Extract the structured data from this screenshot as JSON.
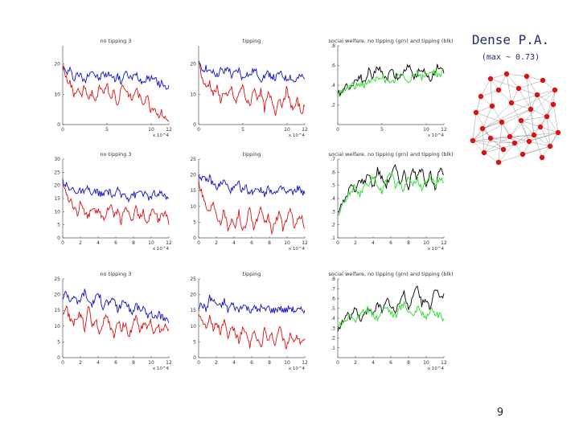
{
  "slide": {
    "title": "Dense P.A.",
    "subtitle": "(max ~ 0.73)",
    "page_number": "9"
  },
  "colors": {
    "red": "#e01010",
    "blue": "#1010c8",
    "black": "#000000",
    "green": "#22dd22",
    "node": "#e01010",
    "edge": "#999999"
  },
  "chart_data": [
    {
      "type": "line",
      "title": "no tipping 3",
      "xlim": [
        0,
        12
      ],
      "ylim": [
        0,
        26
      ],
      "yticks": [
        0,
        10,
        20
      ],
      "xticks": [
        0,
        5,
        10,
        12
      ],
      "xscale_label": "x 10^4",
      "series": [
        {
          "color": "blue",
          "values": [
            19,
            17,
            18,
            15,
            17,
            16,
            14,
            17,
            18,
            16,
            15,
            17,
            16,
            17,
            15,
            16,
            14,
            17,
            16,
            15,
            17,
            15,
            14,
            16,
            15,
            16,
            13,
            14,
            12,
            13
          ]
        },
        {
          "color": "red",
          "values": [
            20,
            15,
            14,
            10,
            12,
            9,
            13,
            8,
            11,
            7,
            12,
            10,
            14,
            9,
            11,
            6,
            13,
            12,
            10,
            8,
            12,
            9,
            7,
            10,
            5,
            6,
            3,
            4,
            2,
            1
          ]
        }
      ]
    },
    {
      "type": "line",
      "title": "tipping",
      "xlim": [
        0,
        12
      ],
      "ylim": [
        0,
        26
      ],
      "yticks": [
        0,
        10,
        20
      ],
      "xticks": [
        0,
        5,
        10,
        12
      ],
      "xscale_label": "x 10^4",
      "series": [
        {
          "color": "blue",
          "values": [
            20,
            18,
            19,
            17,
            18,
            16,
            18,
            17,
            19,
            16,
            17,
            18,
            15,
            17,
            16,
            18,
            17,
            15,
            16,
            17,
            16,
            15,
            17,
            16,
            15,
            16,
            14,
            15,
            16,
            15
          ]
        },
        {
          "color": "red",
          "values": [
            21,
            15,
            12,
            14,
            10,
            12,
            8,
            11,
            9,
            12,
            7,
            10,
            13,
            8,
            6,
            12,
            9,
            11,
            5,
            10,
            8,
            4,
            9,
            6,
            12,
            7,
            5,
            8,
            4,
            6
          ]
        }
      ]
    },
    {
      "type": "line",
      "title": "social welfare, no tipping (grn) and tipping (blk)",
      "xlim": [
        0,
        12
      ],
      "ylim": [
        0,
        0.8
      ],
      "yticks": [
        0.2,
        0.4,
        0.6,
        0.8
      ],
      "xticks": [
        0,
        5,
        10,
        12
      ],
      "xscale_label": "x 10^4",
      "series": [
        {
          "color": "black",
          "values": [
            0.3,
            0.35,
            0.4,
            0.38,
            0.45,
            0.5,
            0.42,
            0.55,
            0.48,
            0.6,
            0.52,
            0.45,
            0.58,
            0.5,
            0.46,
            0.55,
            0.6,
            0.48,
            0.52,
            0.58,
            0.5,
            0.45,
            0.56,
            0.6,
            0.52
          ]
        },
        {
          "color": "green",
          "values": [
            0.3,
            0.32,
            0.36,
            0.4,
            0.38,
            0.42,
            0.4,
            0.45,
            0.43,
            0.47,
            0.5,
            0.44,
            0.4,
            0.46,
            0.5,
            0.48,
            0.45,
            0.5,
            0.52,
            0.47,
            0.5,
            0.55,
            0.53,
            0.5,
            0.55
          ]
        }
      ]
    },
    {
      "type": "line",
      "title": "no tipping 3",
      "xlim": [
        0,
        12
      ],
      "ylim": [
        0,
        30
      ],
      "yticks": [
        0,
        5,
        10,
        15,
        20,
        25,
        30
      ],
      "xticks": [
        0,
        2,
        4,
        6,
        8,
        10,
        12
      ],
      "xscale_label": "x 10^4",
      "series": [
        {
          "color": "blue",
          "values": [
            22,
            20,
            18,
            19,
            17,
            18,
            17,
            19,
            16,
            18,
            17,
            16,
            18,
            17,
            16,
            18,
            16,
            17,
            15,
            17,
            16,
            18,
            17,
            16,
            15,
            17,
            16,
            17,
            16,
            15
          ]
        },
        {
          "color": "red",
          "values": [
            19,
            17,
            14,
            12,
            9,
            14,
            10,
            8,
            12,
            9,
            11,
            7,
            10,
            13,
            8,
            10,
            6,
            12,
            9,
            7,
            11,
            8,
            10,
            6,
            9,
            11,
            7,
            8,
            10,
            5
          ]
        }
      ]
    },
    {
      "type": "line",
      "title": "tipping",
      "xlim": [
        0,
        12
      ],
      "ylim": [
        0,
        25
      ],
      "yticks": [
        0,
        5,
        10,
        15,
        20,
        25
      ],
      "xticks": [
        0,
        2,
        4,
        6,
        8,
        10,
        12
      ],
      "xscale_label": "x 10^4",
      "series": [
        {
          "color": "blue",
          "values": [
            20,
            19,
            18,
            19,
            17,
            16,
            17,
            18,
            16,
            15,
            16,
            17,
            15,
            16,
            14,
            15,
            16,
            15,
            14,
            16,
            15,
            14,
            15,
            16,
            14,
            15,
            14,
            16,
            15,
            14
          ]
        },
        {
          "color": "red",
          "values": [
            18,
            14,
            10,
            8,
            12,
            7,
            5,
            9,
            3,
            6,
            4,
            8,
            2,
            5,
            10,
            3,
            6,
            9,
            4,
            7,
            2,
            5,
            8,
            3,
            6,
            9,
            4,
            5,
            7,
            3
          ]
        }
      ]
    },
    {
      "type": "line",
      "title": "social welfare, no tipping (grn) and tipping (blk)",
      "xlim": [
        0,
        12
      ],
      "ylim": [
        0.1,
        0.7
      ],
      "yticks": [
        0.1,
        0.2,
        0.3,
        0.4,
        0.5,
        0.6,
        0.7
      ],
      "xticks": [
        0,
        2,
        4,
        6,
        8,
        10,
        12
      ],
      "xscale_label": "x 10^4",
      "series": [
        {
          "color": "black",
          "values": [
            0.3,
            0.35,
            0.42,
            0.5,
            0.45,
            0.55,
            0.52,
            0.6,
            0.48,
            0.62,
            0.55,
            0.5,
            0.58,
            0.64,
            0.52,
            0.6,
            0.48,
            0.62,
            0.55,
            0.65,
            0.5,
            0.6,
            0.45,
            0.62,
            0.58
          ]
        },
        {
          "color": "green",
          "values": [
            0.28,
            0.34,
            0.4,
            0.46,
            0.5,
            0.42,
            0.52,
            0.48,
            0.56,
            0.5,
            0.45,
            0.55,
            0.6,
            0.5,
            0.52,
            0.46,
            0.58,
            0.5,
            0.55,
            0.48,
            0.52,
            0.56,
            0.5,
            0.54,
            0.52
          ]
        }
      ]
    },
    {
      "type": "line",
      "title": "no tipping 3",
      "xlim": [
        0,
        12
      ],
      "ylim": [
        0,
        25
      ],
      "yticks": [
        0,
        5,
        10,
        15,
        20,
        25
      ],
      "xticks": [
        0,
        2,
        4,
        6,
        8,
        10,
        12
      ],
      "xscale_label": "x 10^4",
      "series": [
        {
          "color": "blue",
          "values": [
            19,
            21,
            18,
            20,
            17,
            19,
            21,
            18,
            17,
            19,
            20,
            16,
            18,
            17,
            19,
            15,
            17,
            18,
            16,
            14,
            17,
            15,
            16,
            13,
            15,
            12,
            14,
            13,
            12,
            11
          ]
        },
        {
          "color": "red",
          "values": [
            14,
            16,
            12,
            11,
            13,
            14,
            9,
            17,
            10,
            12,
            8,
            11,
            13,
            10,
            7,
            12,
            9,
            11,
            6,
            10,
            13,
            8,
            11,
            9,
            12,
            7,
            10,
            8,
            11,
            9
          ]
        }
      ]
    },
    {
      "type": "line",
      "title": "tipping",
      "xlim": [
        0,
        12
      ],
      "ylim": [
        0,
        25
      ],
      "yticks": [
        0,
        5,
        10,
        15,
        20,
        25
      ],
      "xticks": [
        0,
        2,
        4,
        6,
        8,
        10,
        12
      ],
      "xscale_label": "x 10^4",
      "series": [
        {
          "color": "blue",
          "values": [
            16,
            17,
            15,
            19,
            18,
            17,
            16,
            18,
            15,
            17,
            16,
            15,
            17,
            16,
            15,
            16,
            15,
            16,
            15,
            16,
            15,
            15,
            16,
            15,
            15,
            16,
            15,
            15,
            15,
            15
          ]
        },
        {
          "color": "red",
          "values": [
            14,
            12,
            10,
            13,
            9,
            11,
            8,
            12,
            6,
            10,
            8,
            5,
            9,
            7,
            4,
            8,
            6,
            3,
            9,
            5,
            7,
            4,
            10,
            6,
            3,
            8,
            5,
            7,
            4,
            6
          ]
        }
      ]
    },
    {
      "type": "line",
      "title": "social welfare, no tipping (grn) and tipping (blk)",
      "xlim": [
        0,
        12
      ],
      "ylim": [
        0,
        0.8
      ],
      "yticks": [
        0.1,
        0.2,
        0.3,
        0.4,
        0.5,
        0.6,
        0.7,
        0.8
      ],
      "xticks": [
        0,
        2,
        4,
        6,
        8,
        10,
        12
      ],
      "xscale_label": "x 10^4",
      "series": [
        {
          "color": "black",
          "values": [
            0.3,
            0.35,
            0.45,
            0.4,
            0.5,
            0.38,
            0.42,
            0.5,
            0.46,
            0.55,
            0.48,
            0.6,
            0.52,
            0.45,
            0.58,
            0.65,
            0.5,
            0.62,
            0.7,
            0.55,
            0.6,
            0.48,
            0.7,
            0.62,
            0.65
          ]
        },
        {
          "color": "green",
          "values": [
            0.32,
            0.36,
            0.4,
            0.44,
            0.38,
            0.42,
            0.46,
            0.5,
            0.44,
            0.4,
            0.48,
            0.52,
            0.46,
            0.42,
            0.5,
            0.55,
            0.48,
            0.44,
            0.5,
            0.46,
            0.42,
            0.48,
            0.45,
            0.42,
            0.4
          ]
        }
      ]
    }
  ]
}
